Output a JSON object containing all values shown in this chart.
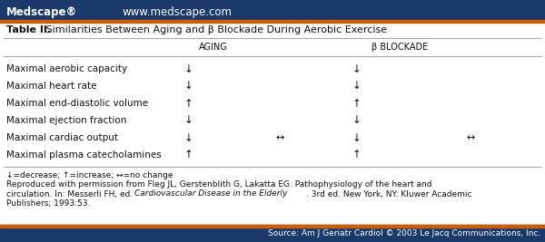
{
  "header_bg": "#1b3a6b",
  "header_text_color": "#ffffff",
  "header_orange_bar": "#c8600a",
  "medscape_text": "Medscape®",
  "website_text": "www.medscape.com",
  "table_title_bold": "Table II.",
  "table_title_rest": " Similarities Between Aging and β Blockade During Aerobic Exercise",
  "col_header_aging": "AGING",
  "col_header_beta": "β BLOCKADE",
  "rows": [
    "Maximal aerobic capacity",
    "Maximal heart rate",
    "Maximal end-diastolic volume",
    "Maximal ejection fraction",
    "Maximal cardiac output",
    "Maximal plasma catecholamines"
  ],
  "aging_col1": [
    "↓",
    "↓",
    "↑",
    "↓",
    "↓",
    "↑"
  ],
  "aging_col2": [
    "",
    "",
    "",
    "",
    "↔",
    ""
  ],
  "beta_col1": [
    "↓",
    "↓",
    "↑",
    "↓",
    "↓",
    "↑"
  ],
  "beta_col2": [
    "",
    "",
    "",
    "",
    "↔",
    ""
  ],
  "footnote_line1": "↓=decrease; ↑=increase; ↔=no change",
  "footnote_line2": "Reproduced with permission from Fleg JL, Gerstenblith G, Lakatta EG. Pathophysiology of the heart and",
  "footnote_line3a": "circulation. In: Messerli FH, ed. ",
  "footnote_line3b": "Cardiovascular Disease in the Elderly",
  "footnote_line3c": ". 3rd ed. New York, NY: Kluwer Academic",
  "footnote_line4": "Publishers; 1993:53.",
  "source_text": "Source: Am J Geriatr Cardiol © 2003 Le Jacq Communications, Inc.",
  "source_bg": "#b0b0b0",
  "source_text_color": "#ffffff",
  "bg_color": "#d8d8d8",
  "white": "#ffffff",
  "line_color": "#aaaaaa",
  "text_color": "#111111"
}
